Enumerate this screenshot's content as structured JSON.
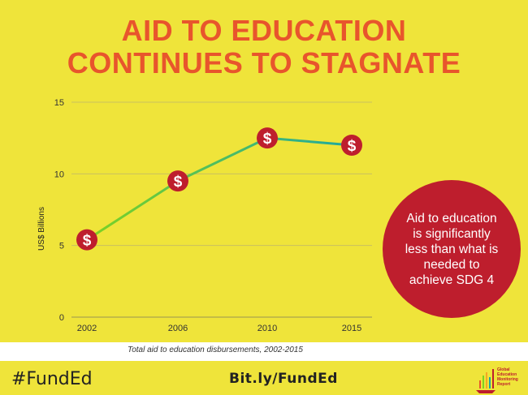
{
  "header": {
    "title_line1": "AID TO EDUCATION",
    "title_line2": "CONTINUES TO STAGNATE"
  },
  "chart_data": {
    "type": "line",
    "x": [
      "2002",
      "2006",
      "2010",
      "2015"
    ],
    "values": [
      5.4,
      9.5,
      12.5,
      12.0
    ],
    "ylabel": "US$ Billions",
    "ylim": [
      0,
      15
    ],
    "yticks": [
      0,
      5,
      10,
      15
    ],
    "grid": true,
    "marker_symbol": "$",
    "colors": {
      "line_start": "#7ed321",
      "line_end": "#1fa8a0",
      "marker": "#be1e2d"
    }
  },
  "callout": {
    "text": "Aid to education is significantly less than what is needed to achieve SDG 4"
  },
  "caption": "Total aid to education disbursements, 2002-2015",
  "footer": {
    "hashtag": "#FundEd",
    "link": "Bit.ly/FundEd",
    "logo_text": "Global Education Monitoring Report"
  }
}
